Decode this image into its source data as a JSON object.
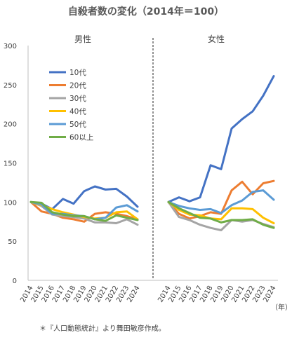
{
  "chart_data": {
    "type": "line",
    "title": "自殺者数の変化（2014年＝100）",
    "x": [
      2014,
      2015,
      2016,
      2017,
      2018,
      2019,
      2020,
      2021,
      2022,
      2023,
      2024
    ],
    "xlabel": "（年）",
    "ylim": [
      0,
      300
    ],
    "yticks": [
      0,
      50,
      100,
      150,
      200,
      250,
      300
    ],
    "grid": false,
    "legend_position": "top-left of left panel",
    "panels": [
      {
        "label": "男性",
        "series": [
          {
            "name": "10代",
            "color": "#4472C4",
            "values": [
              100,
              98,
              91,
              104,
              98,
              114,
              120,
              116,
              117,
              107,
              94
            ]
          },
          {
            "name": "20代",
            "color": "#ED7D31",
            "values": [
              100,
              88,
              85,
              80,
              78,
              75,
              85,
              87,
              85,
              82,
              78
            ]
          },
          {
            "name": "30代",
            "color": "#A5A5A5",
            "values": [
              100,
              95,
              84,
              82,
              81,
              79,
              74,
              74,
              73,
              78,
              71
            ]
          },
          {
            "name": "40代",
            "color": "#FFC000",
            "values": [
              100,
              96,
              91,
              87,
              84,
              81,
              79,
              80,
              87,
              88,
              78
            ]
          },
          {
            "name": "50代",
            "color": "#5B9BD5",
            "values": [
              100,
              97,
              85,
              85,
              83,
              82,
              78,
              80,
              93,
              96,
              88
            ]
          },
          {
            "name": "60以上",
            "color": "#70AD47",
            "values": [
              100,
              99,
              87,
              84,
              82,
              82,
              78,
              76,
              83,
              80,
              77
            ]
          }
        ]
      },
      {
        "label": "女性",
        "series": [
          {
            "name": "10代",
            "color": "#4472C4",
            "values": [
              100,
              106,
              101,
              106,
              147,
              142,
              194,
              206,
              216,
              236,
              261
            ]
          },
          {
            "name": "20代",
            "color": "#ED7D31",
            "values": [
              100,
              85,
              79,
              82,
              87,
              85,
              115,
              126,
              110,
              124,
              127
            ]
          },
          {
            "name": "30代",
            "color": "#A5A5A5",
            "values": [
              100,
              81,
              77,
              71,
              67,
              64,
              77,
              75,
              77,
              72,
              68
            ]
          },
          {
            "name": "40代",
            "color": "#FFC000",
            "values": [
              100,
              90,
              84,
              83,
              79,
              78,
              92,
              92,
              91,
              80,
              73
            ]
          },
          {
            "name": "50代",
            "color": "#5B9BD5",
            "values": [
              100,
              95,
              92,
              90,
              91,
              86,
              96,
              102,
              113,
              115,
              103
            ]
          },
          {
            "name": "60以上",
            "color": "#70AD47",
            "values": [
              100,
              92,
              86,
              80,
              79,
              74,
              77,
              77,
              78,
              71,
              67
            ]
          }
        ]
      }
    ],
    "source_note": "＊『人口動態統計』より舞田敏彦作成。"
  }
}
